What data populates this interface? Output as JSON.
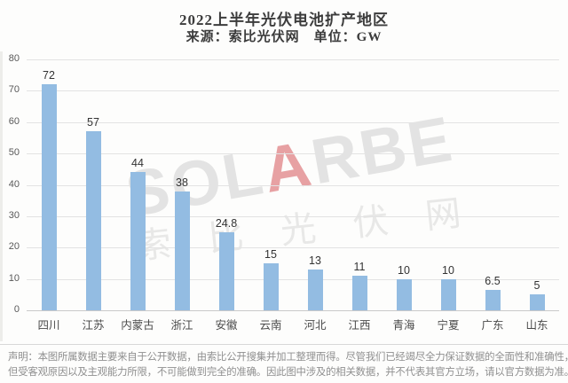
{
  "title": "2022上半年光伏电池扩产地区",
  "subtitle": "来源：索比光伏网　单位：GW",
  "watermark": {
    "en_part1": "SOL",
    "en_accent": "A",
    "en_part2": "RBE",
    "cn": "索比光伏网"
  },
  "footer": {
    "line1": "声明：本图所属数据主要来自于公开数据，由索比公开搜集并加工整理而得。尽管我们已经竭尽全力保证数据的全面性和准确性，",
    "line2": "但受客观原因以及主观能力所限，不可能做到完全的准确。因此图中涉及的相关数据，并不代表其官方立场，请以官方数据为准。"
  },
  "colors": {
    "bar": "#93bce2",
    "watermark_accent": "rgba(214,85,90,0.55)",
    "grid": "#e3e3e3",
    "axis": "#c9c9c9"
  },
  "chart_data": {
    "type": "bar",
    "title": "2022上半年光伏电池扩产地区",
    "subtitle": "来源：索比光伏网 单位：GW",
    "unit": "GW",
    "categories": [
      "四川",
      "江苏",
      "内蒙古",
      "浙江",
      "安徽",
      "云南",
      "河北",
      "江西",
      "青海",
      "宁夏",
      "广东",
      "山东"
    ],
    "values": [
      72,
      57,
      44,
      38,
      24.8,
      15,
      13,
      11,
      10,
      10,
      6.5,
      5
    ],
    "xlabel": "",
    "ylabel": "",
    "ylim": [
      0,
      80
    ],
    "yticks": [
      0,
      10,
      20,
      30,
      40,
      50,
      60,
      70,
      80
    ],
    "grid": true,
    "legend": false
  }
}
